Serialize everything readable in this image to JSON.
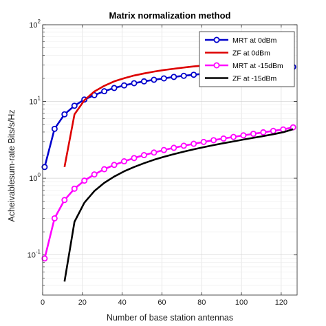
{
  "chart_data": {
    "type": "line",
    "title": "Matrix normalization method",
    "xlabel": "Number of base station antennas",
    "ylabel": "Acheivablesum-rate Bits/s/Hz",
    "xlim": [
      0,
      128
    ],
    "ylim": [
      0.03,
      100
    ],
    "yscale": "log",
    "grid": true,
    "legend_position": "top-right",
    "x_ticks": [
      0,
      20,
      40,
      60,
      80,
      100,
      120
    ],
    "x_tick_labels": [
      "0",
      "20",
      "40",
      "60",
      "80",
      "100",
      "120"
    ],
    "y_ticks": [
      0.1,
      1,
      10,
      100
    ],
    "y_tick_labels": [
      {
        "base": "10",
        "exp": "-1"
      },
      {
        "base": "10",
        "exp": "0"
      },
      {
        "base": "10",
        "exp": "1"
      },
      {
        "base": "10",
        "exp": "2"
      }
    ],
    "series": [
      {
        "name": "MRT at 0dBm",
        "color": "#0000cc",
        "marker": "circle",
        "x": [
          1,
          6,
          11,
          16,
          21,
          26,
          31,
          36,
          41,
          46,
          51,
          56,
          61,
          66,
          71,
          76,
          81,
          86,
          91,
          96,
          101,
          106,
          111,
          116,
          121,
          126
        ],
        "y": [
          1.4,
          4.4,
          6.8,
          8.8,
          10.6,
          12.1,
          13.6,
          15.0,
          16.2,
          17.3,
          18.3,
          19.2,
          20.0,
          20.9,
          21.6,
          22.3,
          23.0,
          23.6,
          24.2,
          24.8,
          25.4,
          26.0,
          26.5,
          27.0,
          27.6,
          28.2
        ]
      },
      {
        "name": "ZF at 0dBm",
        "color": "#dd0000",
        "marker": "none",
        "x": [
          11,
          16,
          21,
          26,
          31,
          36,
          41,
          46,
          51,
          56,
          61,
          66,
          71,
          76,
          81,
          86,
          91,
          96,
          101,
          106,
          111,
          116,
          121,
          126
        ],
        "y": [
          1.4,
          6.8,
          10.4,
          13.5,
          16.0,
          18.3,
          20.1,
          21.8,
          23.2,
          24.5,
          25.7,
          26.7,
          27.7,
          28.6,
          29.4,
          30.2,
          30.9,
          31.6,
          32.2,
          32.8,
          33.4,
          34.0,
          34.5,
          35.0
        ]
      },
      {
        "name": "MRT at -15dBm",
        "color": "#ff00ff",
        "marker": "circle",
        "x": [
          1,
          6,
          11,
          16,
          21,
          26,
          31,
          36,
          41,
          46,
          51,
          56,
          61,
          66,
          71,
          76,
          81,
          86,
          91,
          96,
          101,
          106,
          111,
          116,
          121,
          126
        ],
        "y": [
          0.09,
          0.3,
          0.52,
          0.73,
          0.93,
          1.12,
          1.31,
          1.49,
          1.66,
          1.83,
          2.0,
          2.16,
          2.33,
          2.49,
          2.65,
          2.81,
          2.97,
          3.13,
          3.29,
          3.45,
          3.62,
          3.79,
          3.96,
          4.14,
          4.32,
          4.6
        ]
      },
      {
        "name": "ZF at -15dBm",
        "color": "#000000",
        "marker": "none",
        "x": [
          11,
          16,
          21,
          26,
          31,
          36,
          41,
          46,
          51,
          56,
          61,
          66,
          71,
          76,
          81,
          86,
          91,
          96,
          101,
          106,
          111,
          116,
          121,
          126
        ],
        "y": [
          0.045,
          0.27,
          0.48,
          0.68,
          0.87,
          1.05,
          1.23,
          1.4,
          1.57,
          1.74,
          1.9,
          2.06,
          2.22,
          2.38,
          2.54,
          2.7,
          2.86,
          3.02,
          3.19,
          3.36,
          3.54,
          3.74,
          3.98,
          4.35
        ]
      }
    ]
  }
}
